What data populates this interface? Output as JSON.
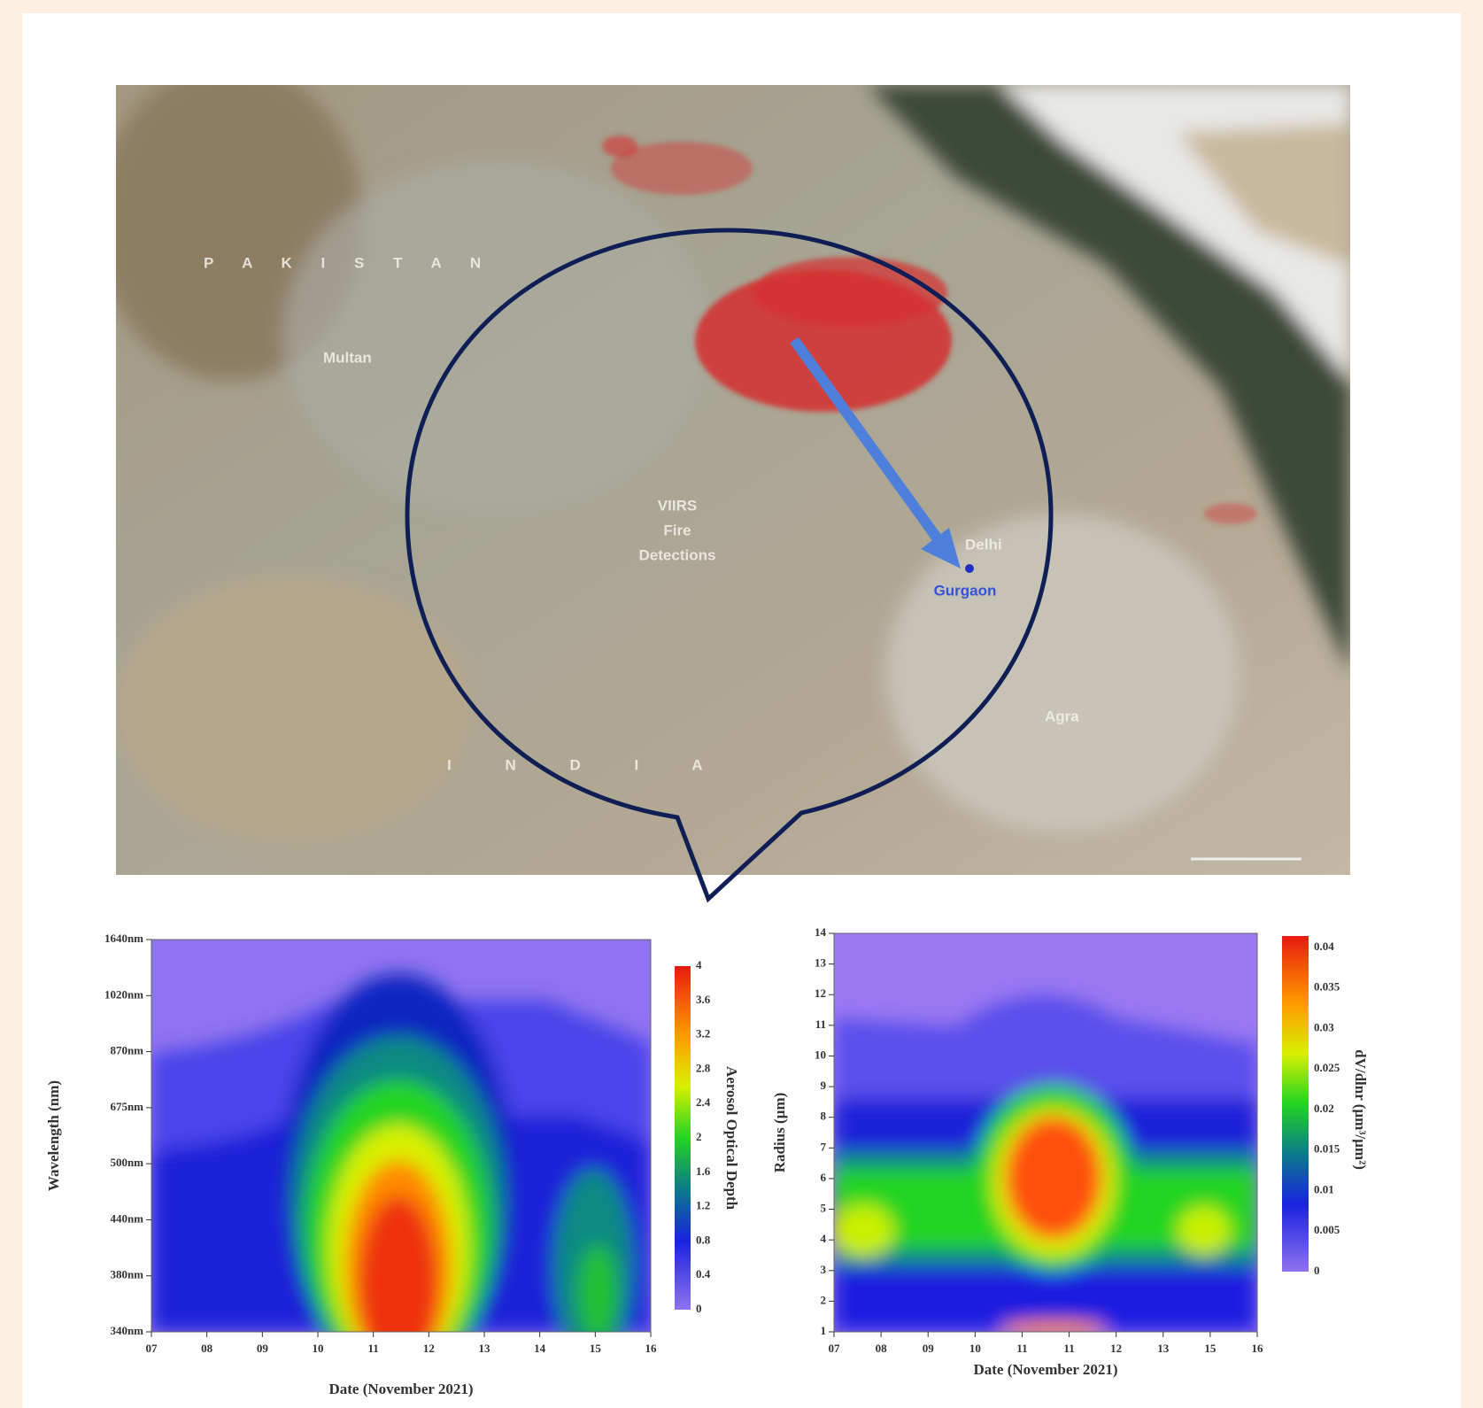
{
  "map": {
    "country_labels": [
      "P A K I S T A N",
      "I N D I A"
    ],
    "city_labels": [
      "Multan",
      "Delhi",
      "Gurgaon",
      "Agra"
    ],
    "fire_label": [
      "VIIRS",
      "Fire",
      "Detections"
    ]
  },
  "left_plot": {
    "y_label": "Wavelength (nm)",
    "y_ticks": [
      "340nm",
      "380nm",
      "440nm",
      "500nm",
      "675nm",
      "870nm",
      "1020nm",
      "1640nm"
    ],
    "x_label": "Date (November 2021)",
    "x_ticks": [
      "07",
      "08",
      "09",
      "10",
      "11",
      "12",
      "13",
      "14",
      "15",
      "16"
    ],
    "colorbar_label": "Aerosol Optical Depth",
    "colorbar_ticks": [
      "0",
      "0.4",
      "0.8",
      "1.2",
      "1.6",
      "2",
      "2.4",
      "2.8",
      "3.2",
      "3.6",
      "4"
    ]
  },
  "right_plot": {
    "y_label": "Radius (µm)",
    "y_ticks": [
      "1",
      "2",
      "3",
      "4",
      "5",
      "6",
      "7",
      "8",
      "9",
      "10",
      "11",
      "12",
      "13",
      "14"
    ],
    "x_label": "Date (November 2021)",
    "x_ticks": [
      "07",
      "08",
      "09",
      "10",
      "11",
      "11",
      "12",
      "13",
      "15",
      "16"
    ],
    "colorbar_label": "dV/dlnr (µm³/µm²)",
    "colorbar_ticks": [
      "0",
      "0.005",
      "0.01",
      "0.015",
      "0.02",
      "0.025",
      "0.03",
      "0.035",
      "0.04"
    ]
  }
}
